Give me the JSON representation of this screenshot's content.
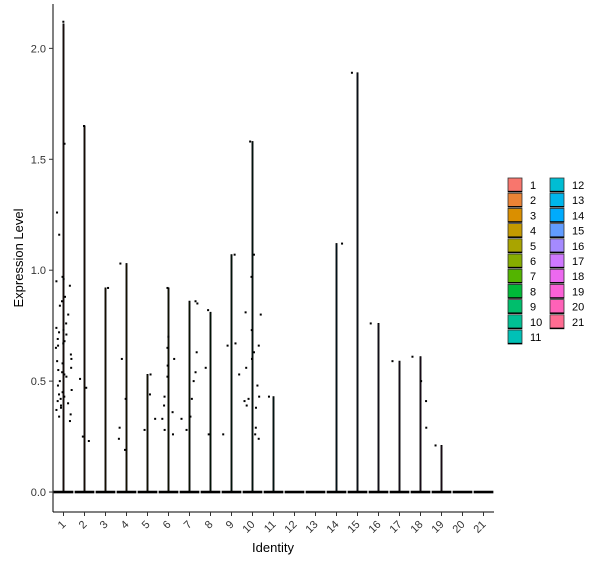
{
  "chart_data": {
    "type": "violin",
    "xlabel": "Identity",
    "ylabel": "Expression Level",
    "categories": [
      "1",
      "2",
      "3",
      "4",
      "5",
      "6",
      "7",
      "8",
      "9",
      "10",
      "11",
      "12",
      "13",
      "14",
      "15",
      "16",
      "17",
      "18",
      "19",
      "20",
      "21"
    ],
    "ylim": [
      -0.09,
      2.2
    ],
    "yticks": [
      0.0,
      0.5,
      1.0,
      1.5,
      2.0
    ],
    "ytick_labels": [
      "0.0",
      "0.5",
      "1.0",
      "1.5",
      "2.0"
    ],
    "grid": false,
    "legend_position": "right",
    "legend_columns": [
      [
        "1",
        "2",
        "3",
        "4",
        "5",
        "6",
        "7",
        "8",
        "9",
        "10",
        "11"
      ],
      [
        "12",
        "13",
        "14",
        "15",
        "16",
        "17",
        "18",
        "19",
        "20",
        "21"
      ]
    ],
    "colors": [
      "#F8766D",
      "#EB8335",
      "#DA8F00",
      "#C49A00",
      "#A9A400",
      "#86AC00",
      "#53B400",
      "#00BA38",
      "#00BE6C",
      "#00C094",
      "#00C0B6",
      "#00BDD3",
      "#00B6EB",
      "#00ABFD",
      "#619CFF",
      "#A58AFF",
      "#CF78FF",
      "#EC69EF",
      "#FB61D7",
      "#FF62B8",
      "#FF6C92"
    ],
    "violin_max": [
      2.11,
      1.65,
      0.92,
      1.03,
      0.53,
      0.92,
      0.86,
      0.81,
      1.07,
      1.58,
      0.43,
      0,
      0,
      1.12,
      1.89,
      0.76,
      0.59,
      0.61,
      0.21,
      0,
      0
    ],
    "points": [
      {
        "identity": "1",
        "values": [
          2.12,
          1.57,
          1.26,
          1.16,
          0.97,
          0.96,
          0.95,
          0.93,
          0.88,
          0.86,
          0.84,
          0.8,
          0.76,
          0.74,
          0.73,
          0.72,
          0.71,
          0.69,
          0.68,
          0.67,
          0.66,
          0.65,
          0.62,
          0.6,
          0.59,
          0.58,
          0.56,
          0.55,
          0.54,
          0.53,
          0.52,
          0.5,
          0.48,
          0.46,
          0.45,
          0.44,
          0.43,
          0.42,
          0.41,
          0.4,
          0.39,
          0.38,
          0.37,
          0.35,
          0.34,
          0.32
        ]
      },
      {
        "identity": "2",
        "values": [
          1.65,
          0.51,
          0.47,
          0.25,
          0.23
        ]
      },
      {
        "identity": "3",
        "values": [
          0.92
        ]
      },
      {
        "identity": "4",
        "values": [
          1.03,
          0.6,
          0.42,
          0.29,
          0.24,
          0.19
        ]
      },
      {
        "identity": "5",
        "values": [
          0.53,
          0.44,
          0.33,
          0.28
        ]
      },
      {
        "identity": "6",
        "values": [
          0.92,
          0.7,
          0.65,
          0.6,
          0.57,
          0.52,
          0.43,
          0.39,
          0.36,
          0.33,
          0.28,
          0.26
        ]
      },
      {
        "identity": "7",
        "values": [
          0.86,
          0.85,
          0.63,
          0.54,
          0.5,
          0.42,
          0.34,
          0.33,
          0.28
        ]
      },
      {
        "identity": "8",
        "values": [
          0.82,
          0.56,
          0.26
        ]
      },
      {
        "identity": "9",
        "values": [
          1.07,
          0.67,
          0.66,
          0.53,
          0.26
        ]
      },
      {
        "identity": "10",
        "values": [
          1.58,
          1.07,
          0.97,
          0.81,
          0.8,
          0.73,
          0.66,
          0.63,
          0.6,
          0.56,
          0.48,
          0.43,
          0.42,
          0.41,
          0.39,
          0.38,
          0.29,
          0.26,
          0.24
        ]
      },
      {
        "identity": "11",
        "values": [
          0.43
        ]
      },
      {
        "identity": "14",
        "values": [
          1.12
        ]
      },
      {
        "identity": "15",
        "values": [
          1.89
        ]
      },
      {
        "identity": "16",
        "values": [
          0.76
        ]
      },
      {
        "identity": "17",
        "values": [
          0.59
        ]
      },
      {
        "identity": "18",
        "values": [
          0.61,
          0.5,
          0.41,
          0.29
        ]
      },
      {
        "identity": "19",
        "values": [
          0.21
        ]
      }
    ]
  }
}
